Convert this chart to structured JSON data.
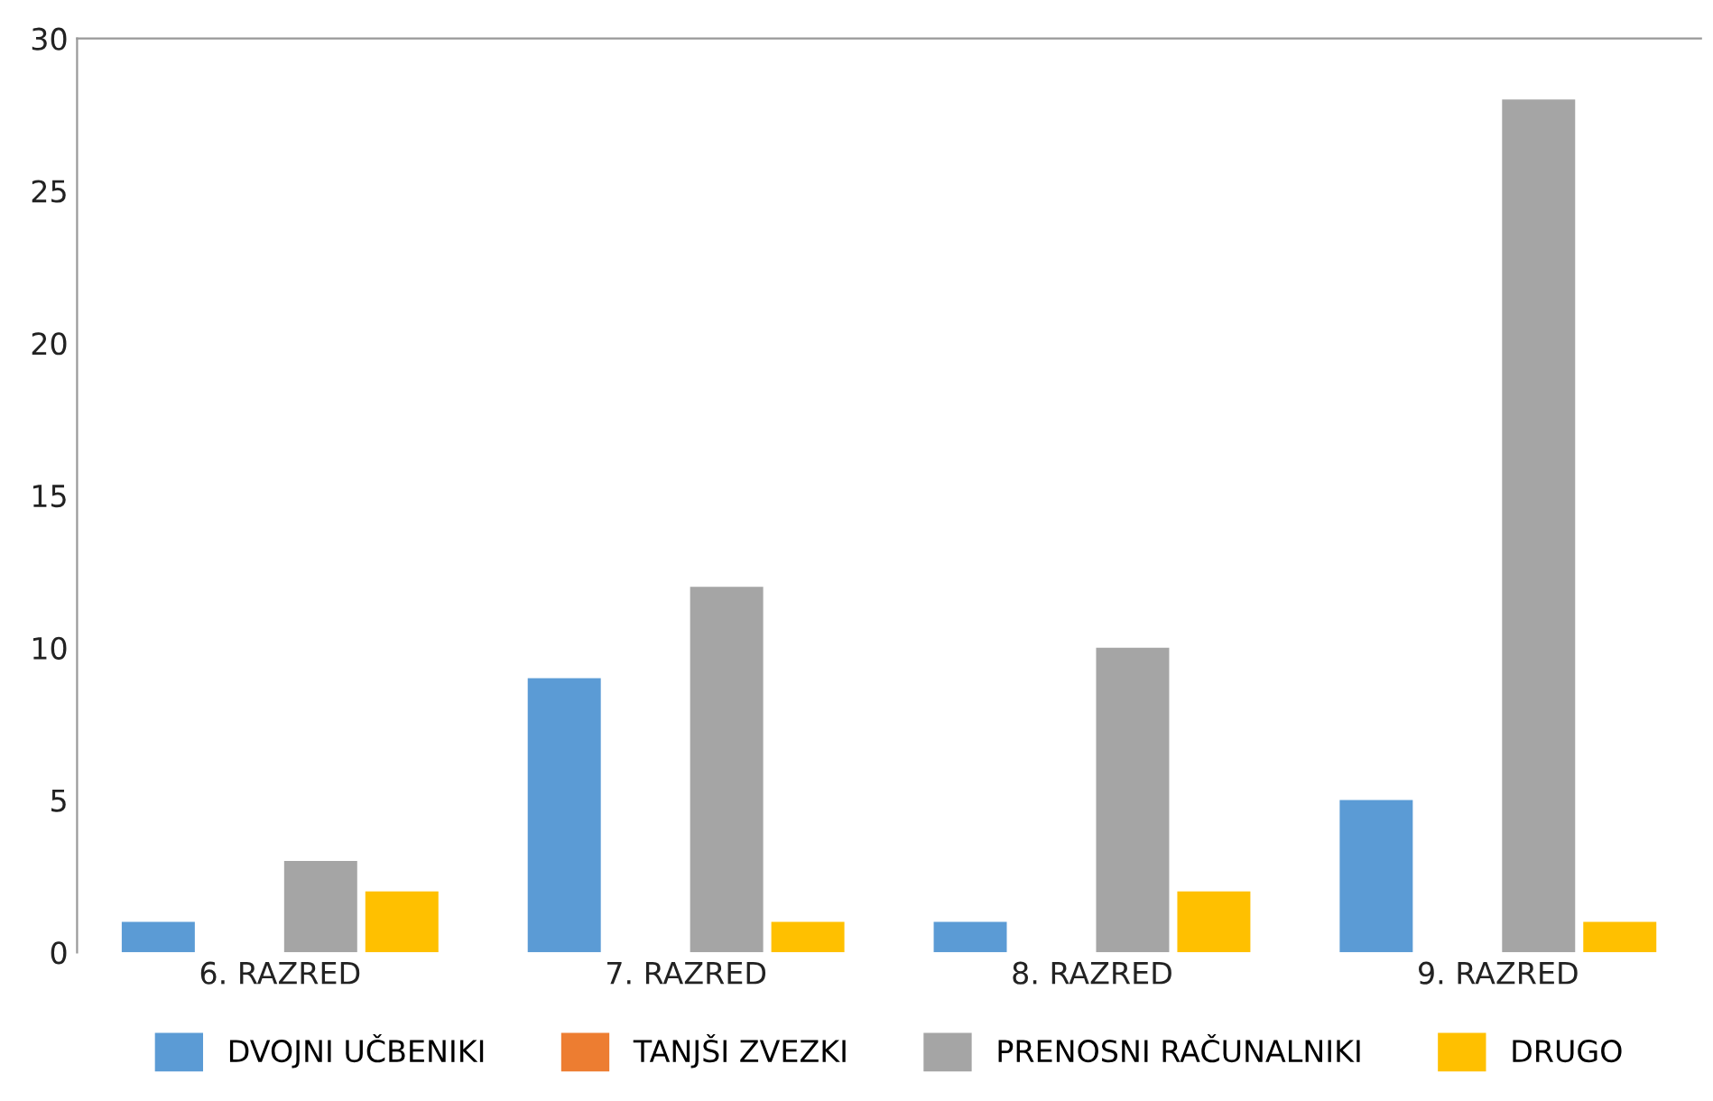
{
  "chart_data": {
    "type": "bar",
    "categories": [
      "6. RAZRED",
      "7. RAZRED",
      "8. RAZRED",
      "9. RAZRED"
    ],
    "series": [
      {
        "name": "DVOJNI UČBENIKI",
        "color": "#5b9bd5",
        "values": [
          1,
          9,
          1,
          5
        ]
      },
      {
        "name": "TANJŠI ZVEZKI",
        "color": "#ed7d31",
        "values": [
          0,
          0,
          0,
          0
        ]
      },
      {
        "name": "PRENOSNI RAČUNALNIKI",
        "color": "#a5a5a5",
        "values": [
          3,
          12,
          10,
          28
        ]
      },
      {
        "name": "DRUGO",
        "color": "#ffc000",
        "values": [
          2,
          1,
          2,
          1
        ]
      }
    ],
    "ylim": [
      0,
      30
    ],
    "yticks": [
      0,
      5,
      10,
      15,
      20,
      25,
      30
    ],
    "grid": false,
    "legend": "bottom"
  }
}
